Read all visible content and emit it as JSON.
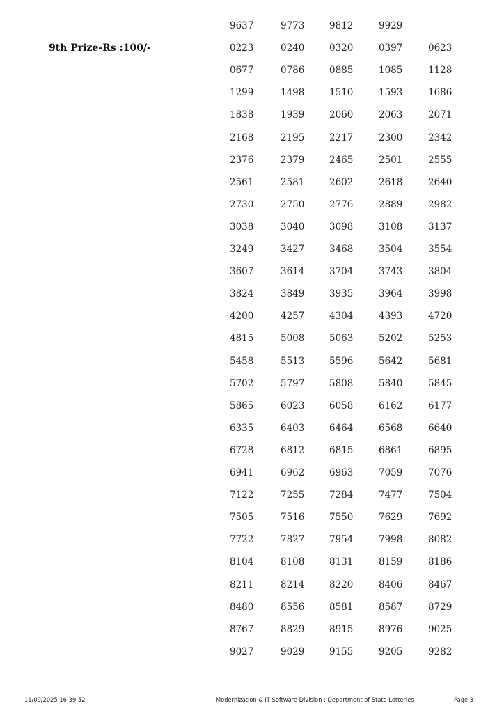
{
  "continuation_rows": [
    [
      "9637",
      "9773",
      "9812",
      "9929"
    ]
  ],
  "prize": {
    "label": "9th Prize-Rs :100/-",
    "rows": [
      [
        "0223",
        "0240",
        "0320",
        "0397",
        "0623"
      ],
      [
        "0677",
        "0786",
        "0885",
        "1085",
        "1128"
      ],
      [
        "1299",
        "1498",
        "1510",
        "1593",
        "1686"
      ],
      [
        "1838",
        "1939",
        "2060",
        "2063",
        "2071"
      ],
      [
        "2168",
        "2195",
        "2217",
        "2300",
        "2342"
      ],
      [
        "2376",
        "2379",
        "2465",
        "2501",
        "2555"
      ],
      [
        "2561",
        "2581",
        "2602",
        "2618",
        "2640"
      ],
      [
        "2730",
        "2750",
        "2776",
        "2889",
        "2982"
      ],
      [
        "3038",
        "3040",
        "3098",
        "3108",
        "3137"
      ],
      [
        "3249",
        "3427",
        "3468",
        "3504",
        "3554"
      ],
      [
        "3607",
        "3614",
        "3704",
        "3743",
        "3804"
      ],
      [
        "3824",
        "3849",
        "3935",
        "3964",
        "3998"
      ],
      [
        "4200",
        "4257",
        "4304",
        "4393",
        "4720"
      ],
      [
        "4815",
        "5008",
        "5063",
        "5202",
        "5253"
      ],
      [
        "5458",
        "5513",
        "5596",
        "5642",
        "5681"
      ],
      [
        "5702",
        "5797",
        "5808",
        "5840",
        "5845"
      ],
      [
        "5865",
        "6023",
        "6058",
        "6162",
        "6177"
      ],
      [
        "6335",
        "6403",
        "6464",
        "6568",
        "6640"
      ],
      [
        "6728",
        "6812",
        "6815",
        "6861",
        "6895"
      ],
      [
        "6941",
        "6962",
        "6963",
        "7059",
        "7076"
      ],
      [
        "7122",
        "7255",
        "7284",
        "7477",
        "7504"
      ],
      [
        "7505",
        "7516",
        "7550",
        "7629",
        "7692"
      ],
      [
        "7722",
        "7827",
        "7954",
        "7998",
        "8082"
      ],
      [
        "8104",
        "8108",
        "8131",
        "8159",
        "8186"
      ],
      [
        "8211",
        "8214",
        "8220",
        "8406",
        "8467"
      ],
      [
        "8480",
        "8556",
        "8581",
        "8587",
        "8729"
      ],
      [
        "8767",
        "8829",
        "8915",
        "8976",
        "9025"
      ],
      [
        "9027",
        "9029",
        "9155",
        "9205",
        "9282"
      ]
    ]
  },
  "footer": {
    "timestamp": "11/09/2025 16:39:52",
    "organization": "Modernization & IT Software Division : Department of State Lotteries",
    "page": "Page 3"
  }
}
